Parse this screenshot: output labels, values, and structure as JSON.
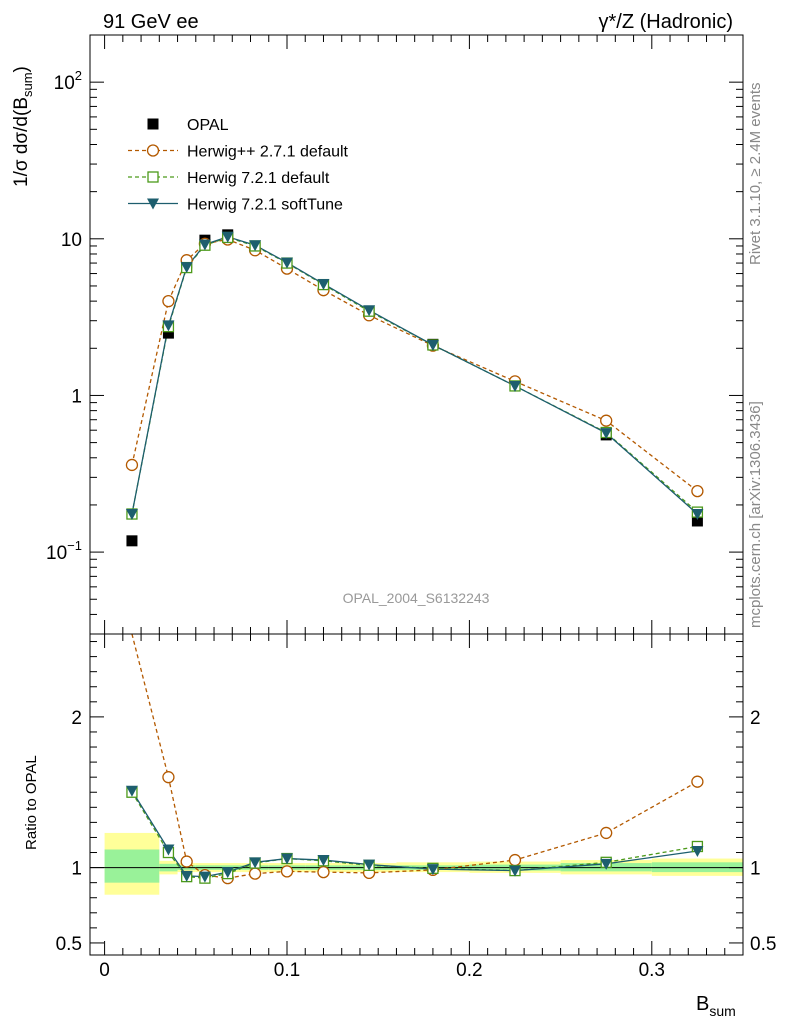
{
  "header": {
    "left": "91 GeV ee",
    "right": "γ*/Z (Hadronic)"
  },
  "side_labels": {
    "rivet": "Rivet 3.1.10, ≥ 2.4M events",
    "source": "mcplots.cern.ch [arXiv:1306.3436]"
  },
  "watermark": "OPAL_2004_S6132243",
  "axes": {
    "main_ylabel": "1/σ dσ/d(B_sum)",
    "ratio_ylabel": "Ratio to OPAL",
    "xlabel": "B_sum"
  },
  "colors": {
    "herwigpp": "#b35900",
    "herwig721": "#4c9a1a",
    "softtune": "#1d5e6e",
    "band_inner": "#99f299",
    "band_outer": "#ffff99"
  },
  "chart_data": [
    {
      "type": "line",
      "panel": "main",
      "yscale": "log",
      "ylim": [
        0.03,
        200
      ],
      "xlim": [
        -0.008,
        0.35
      ],
      "x_ticks": [
        0,
        0.1,
        0.2,
        0.3
      ],
      "y_tick_labels": [
        "10^-1",
        "1",
        "10",
        "10^2"
      ],
      "legend_position": "upper-left",
      "x": [
        0.015,
        0.035,
        0.045,
        0.055,
        0.0675,
        0.0825,
        0.1,
        0.12,
        0.145,
        0.18,
        0.225,
        0.275,
        0.325
      ],
      "series": [
        {
          "name": "OPAL",
          "marker": "filled-square",
          "values": [
            0.118,
            2.5,
            7.0,
            9.8,
            10.6,
            8.8,
            6.7,
            4.95,
            3.4,
            2.12,
            1.17,
            0.56,
            0.158
          ]
        },
        {
          "name": "Herwig++ 2.7.1 default",
          "marker": "open-circle",
          "line": "dashed",
          "values": [
            0.36,
            4.0,
            7.3,
            9.3,
            9.9,
            8.45,
            6.45,
            4.7,
            3.25,
            2.08,
            1.23,
            0.69,
            0.245
          ]
        },
        {
          "name": "Herwig 7.2.1 default",
          "marker": "open-square",
          "line": "dashed",
          "values": [
            0.175,
            2.75,
            6.55,
            9.1,
            10.2,
            9.0,
            7.0,
            5.1,
            3.45,
            2.1,
            1.15,
            0.58,
            0.18
          ]
        },
        {
          "name": "Herwig 7.2.1 softTune",
          "marker": "filled-triangle-down",
          "line": "solid",
          "values": [
            0.175,
            2.8,
            6.6,
            9.2,
            10.3,
            9.1,
            7.05,
            5.15,
            3.5,
            2.1,
            1.15,
            0.575,
            0.175
          ]
        }
      ]
    },
    {
      "type": "line",
      "panel": "ratio",
      "ylim": [
        0.42,
        2.55
      ],
      "y_ticks": [
        0.5,
        1,
        2
      ],
      "x": [
        0.015,
        0.035,
        0.045,
        0.055,
        0.0675,
        0.0825,
        0.1,
        0.12,
        0.145,
        0.18,
        0.225,
        0.275,
        0.325
      ],
      "series": [
        {
          "name": "Herwig++ 2.7.1 default",
          "values": [
            3.0,
            1.6,
            1.04,
            0.95,
            0.93,
            0.96,
            0.975,
            0.97,
            0.965,
            0.985,
            1.05,
            1.23,
            1.57
          ]
        },
        {
          "name": "Herwig 7.2.1 default",
          "values": [
            1.5,
            1.1,
            0.94,
            0.93,
            0.96,
            1.03,
            1.06,
            1.045,
            1.015,
            0.995,
            0.98,
            1.035,
            1.14
          ]
        },
        {
          "name": "Herwig 7.2.1 softTune",
          "values": [
            1.51,
            1.12,
            0.945,
            0.94,
            0.97,
            1.035,
            1.06,
            1.05,
            1.02,
            0.99,
            0.98,
            1.025,
            1.11
          ]
        }
      ],
      "bands": [
        {
          "x0": 0.0,
          "x1": 0.03,
          "inner": [
            0.9,
            1.12
          ],
          "outer": [
            0.82,
            1.23
          ]
        },
        {
          "x0": 0.03,
          "x1": 0.04,
          "inner": [
            0.975,
            1.025
          ],
          "outer": [
            0.955,
            1.045
          ]
        },
        {
          "x0": 0.04,
          "x1": 0.05,
          "inner": [
            0.985,
            1.015
          ],
          "outer": [
            0.97,
            1.03
          ]
        },
        {
          "x0": 0.05,
          "x1": 0.06,
          "inner": [
            0.985,
            1.015
          ],
          "outer": [
            0.97,
            1.03
          ]
        },
        {
          "x0": 0.06,
          "x1": 0.075,
          "inner": [
            0.985,
            1.015
          ],
          "outer": [
            0.97,
            1.03
          ]
        },
        {
          "x0": 0.075,
          "x1": 0.09,
          "inner": [
            0.985,
            1.015
          ],
          "outer": [
            0.97,
            1.03
          ]
        },
        {
          "x0": 0.09,
          "x1": 0.11,
          "inner": [
            0.985,
            1.015
          ],
          "outer": [
            0.97,
            1.03
          ]
        },
        {
          "x0": 0.11,
          "x1": 0.13,
          "inner": [
            0.985,
            1.015
          ],
          "outer": [
            0.97,
            1.03
          ]
        },
        {
          "x0": 0.13,
          "x1": 0.16,
          "inner": [
            0.985,
            1.015
          ],
          "outer": [
            0.97,
            1.03
          ]
        },
        {
          "x0": 0.16,
          "x1": 0.2,
          "inner": [
            0.985,
            1.015
          ],
          "outer": [
            0.97,
            1.035
          ]
        },
        {
          "x0": 0.2,
          "x1": 0.25,
          "inner": [
            0.98,
            1.02
          ],
          "outer": [
            0.965,
            1.04
          ]
        },
        {
          "x0": 0.25,
          "x1": 0.3,
          "inner": [
            0.975,
            1.03
          ],
          "outer": [
            0.955,
            1.05
          ]
        },
        {
          "x0": 0.3,
          "x1": 0.35,
          "inner": [
            0.97,
            1.035
          ],
          "outer": [
            0.945,
            1.06
          ]
        }
      ]
    }
  ]
}
